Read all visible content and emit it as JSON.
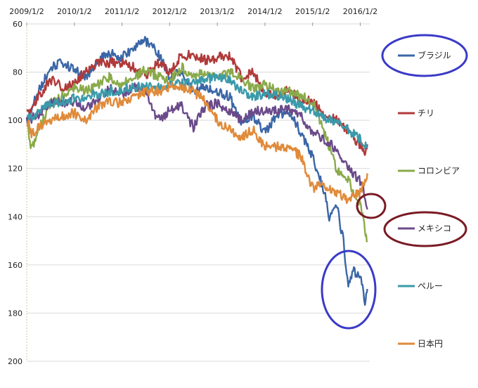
{
  "chart_data": {
    "type": "line",
    "title": "",
    "xlabel": "",
    "ylabel": "",
    "x_ticks": [
      "2009/1/2",
      "2010/1/2",
      "2011/1/2",
      "2012/1/2",
      "2013/1/2",
      "2014/1/2",
      "2015/1/2",
      "2016/1/2"
    ],
    "y_ticks": [
      60,
      80,
      100,
      120,
      140,
      160,
      180,
      200
    ],
    "ylim": [
      60,
      200
    ],
    "y_inverted": true,
    "grid": "horizontal",
    "legend_position": "right",
    "series": [
      {
        "name": "ブラジル",
        "color": "#3a66a6",
        "points": [
          [
            2009.0,
            100
          ],
          [
            2009.25,
            88
          ],
          [
            2009.5,
            78
          ],
          [
            2009.75,
            76
          ],
          [
            2010.0,
            79
          ],
          [
            2010.25,
            82
          ],
          [
            2010.5,
            75
          ],
          [
            2010.75,
            72
          ],
          [
            2011.0,
            74
          ],
          [
            2011.25,
            70
          ],
          [
            2011.5,
            67
          ],
          [
            2011.75,
            72
          ],
          [
            2012.0,
            82
          ],
          [
            2012.25,
            80
          ],
          [
            2012.5,
            88
          ],
          [
            2012.75,
            86
          ],
          [
            2013.0,
            88
          ],
          [
            2013.25,
            90
          ],
          [
            2013.5,
            100
          ],
          [
            2013.75,
            98
          ],
          [
            2014.0,
            105
          ],
          [
            2014.25,
            98
          ],
          [
            2014.5,
            96
          ],
          [
            2014.75,
            105
          ],
          [
            2015.0,
            115
          ],
          [
            2015.25,
            130
          ],
          [
            2015.35,
            140
          ],
          [
            2015.5,
            135
          ],
          [
            2015.65,
            150
          ],
          [
            2015.75,
            170
          ],
          [
            2015.85,
            162
          ],
          [
            2016.0,
            165
          ],
          [
            2016.1,
            175
          ],
          [
            2016.15,
            170
          ]
        ]
      },
      {
        "name": "チリ",
        "color": "#b03a3a",
        "points": [
          [
            2009.0,
            98
          ],
          [
            2009.25,
            90
          ],
          [
            2009.5,
            83
          ],
          [
            2009.75,
            86
          ],
          [
            2010.0,
            85
          ],
          [
            2010.25,
            79
          ],
          [
            2010.5,
            76
          ],
          [
            2010.75,
            76
          ],
          [
            2011.0,
            76
          ],
          [
            2011.25,
            78
          ],
          [
            2011.5,
            82
          ],
          [
            2011.75,
            76
          ],
          [
            2012.0,
            80
          ],
          [
            2012.25,
            73
          ],
          [
            2012.5,
            73
          ],
          [
            2012.75,
            75
          ],
          [
            2013.0,
            74
          ],
          [
            2013.25,
            73
          ],
          [
            2013.5,
            82
          ],
          [
            2013.75,
            80
          ],
          [
            2014.0,
            89
          ],
          [
            2014.25,
            90
          ],
          [
            2014.5,
            87
          ],
          [
            2014.75,
            92
          ],
          [
            2015.0,
            92
          ],
          [
            2015.25,
            98
          ],
          [
            2015.5,
            100
          ],
          [
            2015.75,
            105
          ],
          [
            2016.0,
            110
          ],
          [
            2016.1,
            113
          ],
          [
            2016.15,
            110
          ]
        ]
      },
      {
        "name": "コロンビア",
        "color": "#8aaa4a",
        "points": [
          [
            2009.0,
            100
          ],
          [
            2009.1,
            112
          ],
          [
            2009.25,
            104
          ],
          [
            2009.5,
            93
          ],
          [
            2009.75,
            90
          ],
          [
            2010.0,
            86
          ],
          [
            2010.25,
            88
          ],
          [
            2010.5,
            85
          ],
          [
            2010.75,
            82
          ],
          [
            2011.0,
            85
          ],
          [
            2011.25,
            82
          ],
          [
            2011.5,
            79
          ],
          [
            2011.75,
            82
          ],
          [
            2012.0,
            84
          ],
          [
            2012.25,
            78
          ],
          [
            2012.5,
            82
          ],
          [
            2012.75,
            80
          ],
          [
            2013.0,
            82
          ],
          [
            2013.25,
            80
          ],
          [
            2013.5,
            82
          ],
          [
            2013.75,
            87
          ],
          [
            2014.0,
            85
          ],
          [
            2014.25,
            88
          ],
          [
            2014.5,
            88
          ],
          [
            2014.75,
            90
          ],
          [
            2015.0,
            92
          ],
          [
            2015.25,
            105
          ],
          [
            2015.5,
            120
          ],
          [
            2015.75,
            125
          ],
          [
            2016.0,
            135
          ],
          [
            2016.1,
            145
          ],
          [
            2016.15,
            150
          ]
        ]
      },
      {
        "name": "メキシコ",
        "color": "#6a4a8a",
        "points": [
          [
            2009.0,
            100
          ],
          [
            2009.25,
            98
          ],
          [
            2009.5,
            92
          ],
          [
            2009.75,
            93
          ],
          [
            2010.0,
            92
          ],
          [
            2010.25,
            95
          ],
          [
            2010.5,
            91
          ],
          [
            2010.75,
            87
          ],
          [
            2011.0,
            89
          ],
          [
            2011.25,
            86
          ],
          [
            2011.5,
            87
          ],
          [
            2011.75,
            100
          ],
          [
            2012.0,
            96
          ],
          [
            2012.25,
            94
          ],
          [
            2012.5,
            103
          ],
          [
            2012.75,
            94
          ],
          [
            2013.0,
            93
          ],
          [
            2013.25,
            96
          ],
          [
            2013.5,
            100
          ],
          [
            2013.75,
            96
          ],
          [
            2014.0,
            96
          ],
          [
            2014.25,
            96
          ],
          [
            2014.5,
            95
          ],
          [
            2014.75,
            98
          ],
          [
            2015.0,
            105
          ],
          [
            2015.25,
            108
          ],
          [
            2015.5,
            112
          ],
          [
            2015.75,
            120
          ],
          [
            2016.0,
            125
          ],
          [
            2016.1,
            131
          ],
          [
            2016.15,
            137
          ]
        ]
      },
      {
        "name": "ペルー",
        "color": "#3a9aaa",
        "points": [
          [
            2009.0,
            100
          ],
          [
            2009.25,
            96
          ],
          [
            2009.5,
            93
          ],
          [
            2009.75,
            92
          ],
          [
            2010.0,
            91
          ],
          [
            2010.25,
            90
          ],
          [
            2010.5,
            89
          ],
          [
            2010.75,
            88
          ],
          [
            2011.0,
            87
          ],
          [
            2011.25,
            86
          ],
          [
            2011.5,
            86
          ],
          [
            2011.75,
            86
          ],
          [
            2012.0,
            85
          ],
          [
            2012.25,
            85
          ],
          [
            2012.5,
            84
          ],
          [
            2012.75,
            83
          ],
          [
            2013.0,
            82
          ],
          [
            2013.25,
            83
          ],
          [
            2013.5,
            88
          ],
          [
            2013.75,
            90
          ],
          [
            2014.0,
            89
          ],
          [
            2014.25,
            90
          ],
          [
            2014.5,
            91
          ],
          [
            2014.75,
            94
          ],
          [
            2015.0,
            96
          ],
          [
            2015.25,
            99
          ],
          [
            2015.5,
            101
          ],
          [
            2015.75,
            104
          ],
          [
            2016.0,
            108
          ],
          [
            2016.1,
            110
          ],
          [
            2016.15,
            111
          ]
        ]
      },
      {
        "name": "日本円",
        "color": "#e08a3a",
        "points": [
          [
            2009.0,
            100
          ],
          [
            2009.1,
            106
          ],
          [
            2009.25,
            103
          ],
          [
            2009.5,
            100
          ],
          [
            2009.75,
            98
          ],
          [
            2010.0,
            97
          ],
          [
            2010.25,
            100
          ],
          [
            2010.5,
            94
          ],
          [
            2010.75,
            92
          ],
          [
            2011.0,
            93
          ],
          [
            2011.25,
            90
          ],
          [
            2011.5,
            88
          ],
          [
            2011.75,
            88
          ],
          [
            2012.0,
            86
          ],
          [
            2012.25,
            86
          ],
          [
            2012.5,
            88
          ],
          [
            2012.75,
            92
          ],
          [
            2013.0,
            100
          ],
          [
            2013.25,
            104
          ],
          [
            2013.5,
            107
          ],
          [
            2013.75,
            104
          ],
          [
            2014.0,
            111
          ],
          [
            2014.25,
            111
          ],
          [
            2014.5,
            111
          ],
          [
            2014.75,
            115
          ],
          [
            2015.0,
            128
          ],
          [
            2015.25,
            127
          ],
          [
            2015.5,
            130
          ],
          [
            2015.75,
            133
          ],
          [
            2016.0,
            130
          ],
          [
            2016.1,
            125
          ],
          [
            2016.15,
            122
          ]
        ]
      }
    ]
  },
  "annotations": {
    "blue_circle_color": "#3a3ac8",
    "red_circle_color": "#7a1a24"
  }
}
